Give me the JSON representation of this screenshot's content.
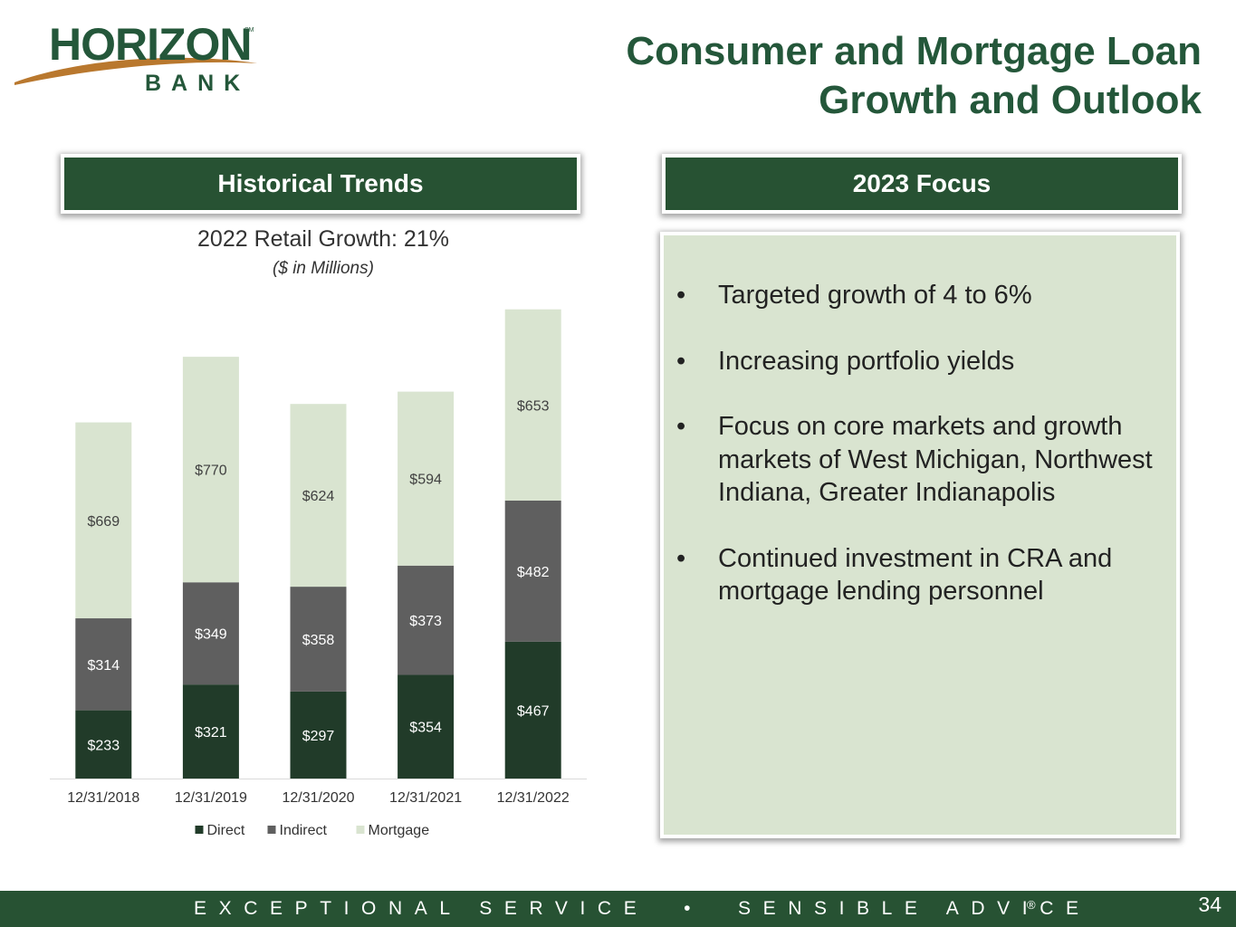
{
  "brand": {
    "name": "HORIZON",
    "sub": "BANK",
    "mark": "SM"
  },
  "title": {
    "line1": "Consumer and Mortgage Loan",
    "line2": "Growth and Outlook"
  },
  "sections": {
    "historical": "Historical Trends",
    "focus": "2023 Focus"
  },
  "focus": {
    "bullet": "•",
    "items": [
      "Targeted growth of 4 to 6%",
      "Increasing portfolio yields",
      "Focus on core markets and growth markets of West Michigan, Northwest Indiana, Greater Indianapolis",
      "Continued investment in CRA and mortgage lending personnel"
    ]
  },
  "colors": {
    "brand_green": "#275233",
    "direct": "#213b29",
    "indirect": "#5f5f5f",
    "mortgage": "#d9e4d0"
  },
  "chart_data": {
    "type": "bar",
    "stacked": true,
    "title": "2022 Retail Growth: 21%",
    "subtitle": "($ in Millions)",
    "xlabel": "",
    "ylabel": "",
    "ylim": [
      0,
      1700
    ],
    "grid": false,
    "legend": "bottom",
    "categories": [
      "12/31/2018",
      "12/31/2019",
      "12/31/2020",
      "12/31/2021",
      "12/31/2022"
    ],
    "series": [
      {
        "name": "Direct",
        "values": [
          233,
          321,
          297,
          354,
          467
        ],
        "labels": [
          "$233",
          "$321",
          "$297",
          "$354",
          "$467"
        ],
        "color": "#213b29"
      },
      {
        "name": "Indirect",
        "values": [
          314,
          349,
          358,
          373,
          482
        ],
        "labels": [
          "$314",
          "$349",
          "$358",
          "$373",
          "$482"
        ],
        "color": "#5f5f5f"
      },
      {
        "name": "Mortgage",
        "values": [
          669,
          770,
          624,
          594,
          653
        ],
        "labels": [
          "$669",
          "$770",
          "$624",
          "$594",
          "$653"
        ],
        "color": "#d9e4d0"
      }
    ]
  },
  "footer": {
    "tagline": "EXCEPTIONAL SERVICE  •  SENSIBLE ADVICE",
    "registered": "®",
    "page": "34"
  }
}
